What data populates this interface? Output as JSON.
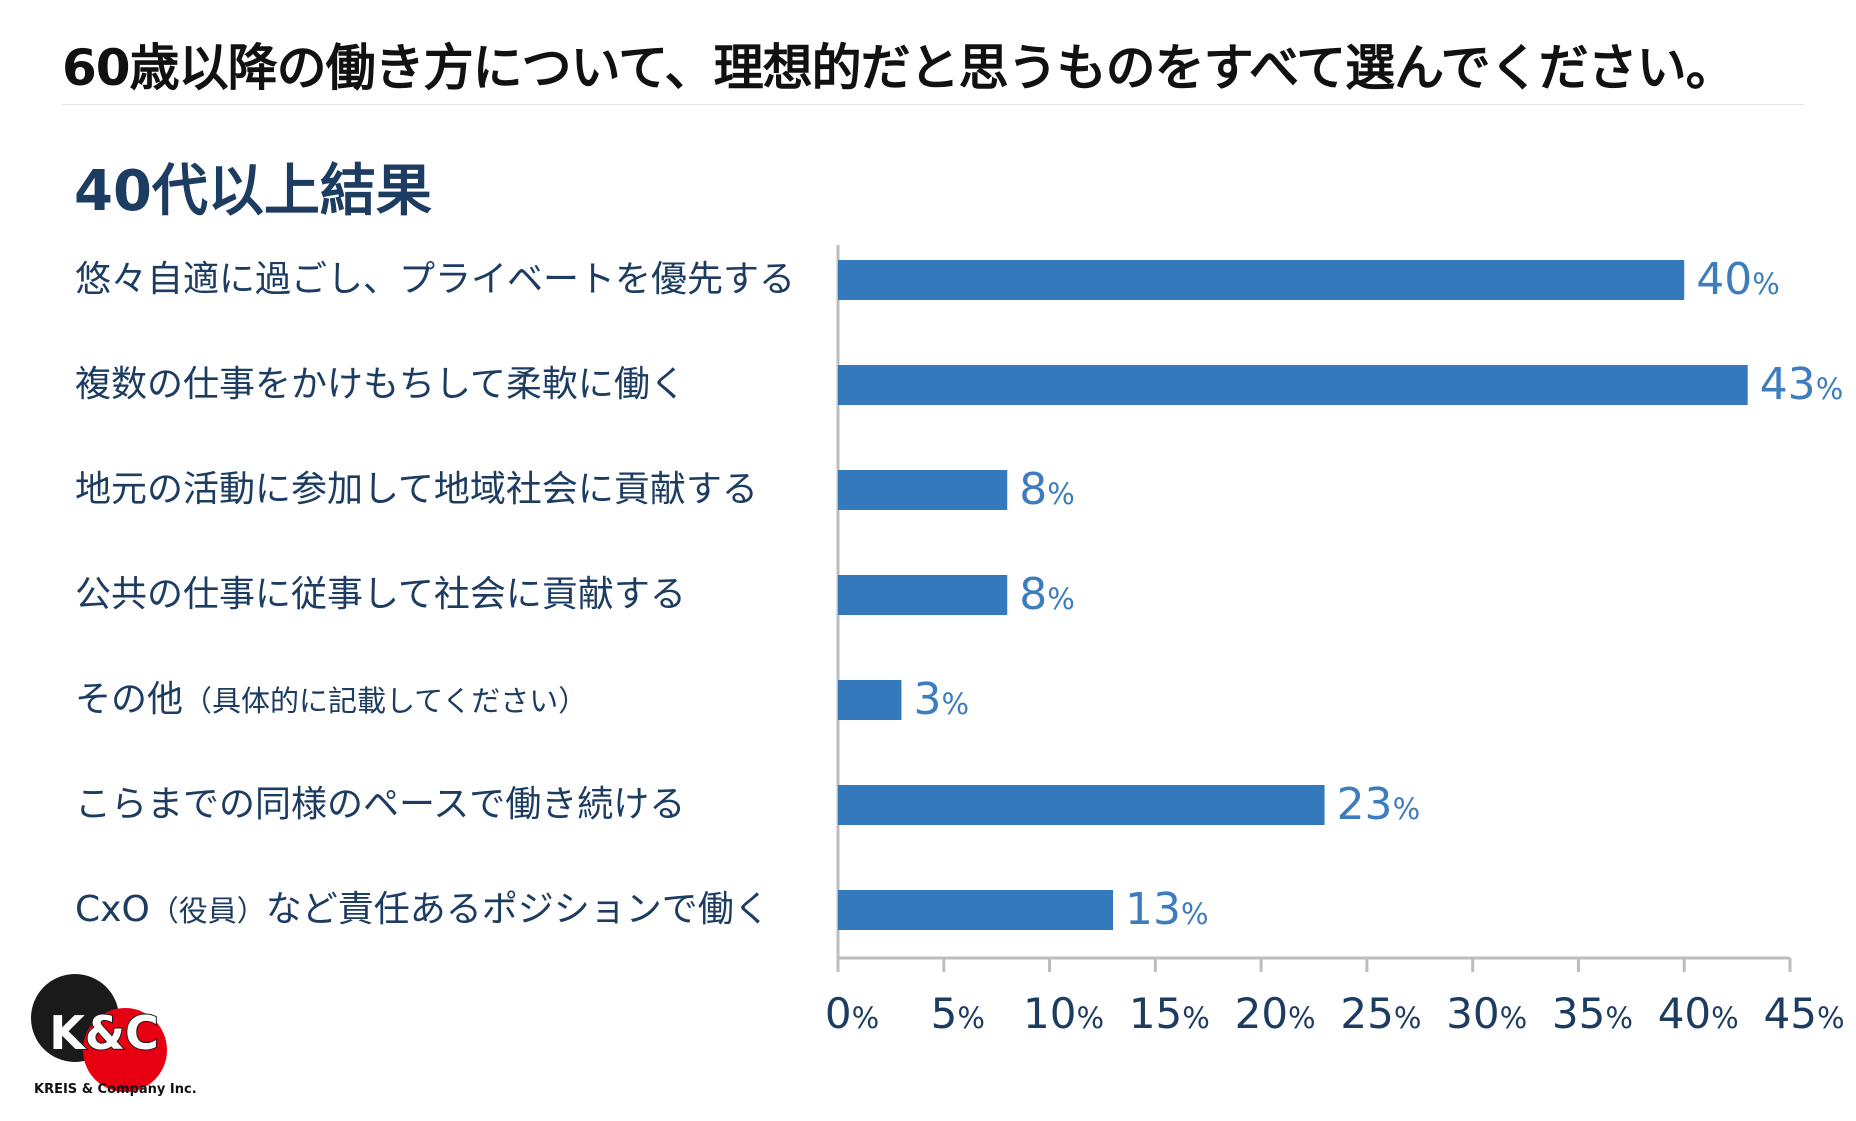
{
  "title": "60歳以降の働き方について、理想的だと思うものをすべて選んでください。",
  "subtitle": "40代以上結果",
  "colors": {
    "bar": "#3479bb",
    "value_text": "#3d7dbd",
    "label_text": "#1d3c62",
    "axis": "#bdbdbd",
    "logo_dark": "#1a1a1a",
    "logo_red": "#e60012"
  },
  "logo": {
    "mark": "K&C",
    "caption": "KREIS & Company Inc."
  },
  "chart_data": {
    "type": "bar",
    "orientation": "horizontal",
    "title": "40代以上結果",
    "categories": [
      {
        "main": "悠々自適に過ごし、プライベートを優先する",
        "note": ""
      },
      {
        "main": "複数の仕事をかけもちして柔軟に働く",
        "note": ""
      },
      {
        "main": "地元の活動に参加して地域社会に貢献する",
        "note": ""
      },
      {
        "main": "公共の仕事に従事して社会に貢献する",
        "note": ""
      },
      {
        "main": "その他",
        "note": "（具体的に記載してください）"
      },
      {
        "main": "こらまでの同様のペースで働き続ける",
        "note": ""
      },
      {
        "main": "CxO",
        "note": "（役員）",
        "rest": "など責任あるポジションで働く"
      }
    ],
    "values": [
      40,
      43,
      8,
      8,
      3,
      23,
      13
    ],
    "unit": "%",
    "xlim": [
      0,
      45
    ],
    "xticks": [
      0,
      5,
      10,
      15,
      20,
      25,
      30,
      35,
      40,
      45
    ],
    "grid": false,
    "legend": "none"
  }
}
